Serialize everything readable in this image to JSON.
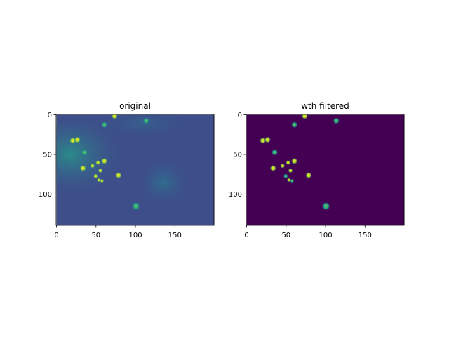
{
  "chart_data": [
    {
      "type": "image",
      "title": "original",
      "xlim": [
        -0.5,
        199.5
      ],
      "ylim": [
        139.5,
        -0.5
      ],
      "xticks": [
        0,
        50,
        100,
        150
      ],
      "yticks": [
        0,
        50,
        100
      ]
    },
    {
      "type": "image",
      "title": "wth filtered",
      "xlim": [
        -0.5,
        199.5
      ],
      "ylim": [
        139.5,
        -0.5
      ],
      "xticks": [
        0,
        50,
        100,
        150
      ],
      "yticks": [
        0,
        50,
        100
      ]
    }
  ]
}
